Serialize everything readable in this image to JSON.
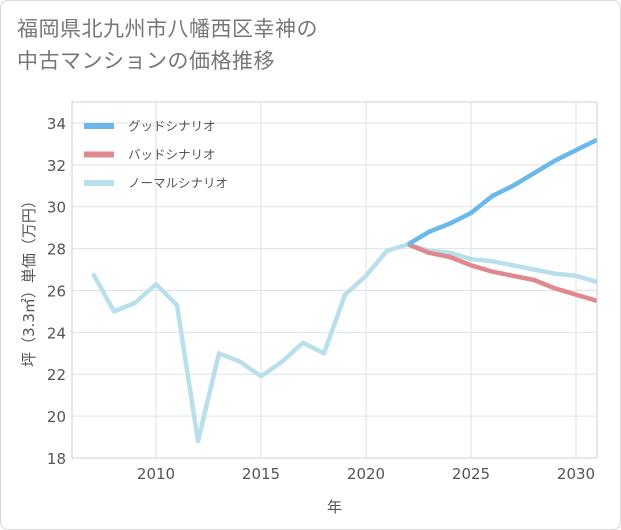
{
  "title_lines": [
    "福岡県北九州市八幡西区幸神の",
    "中古マンションの価格推移"
  ],
  "chart_data": {
    "type": "line",
    "title": "福岡県北九州市八幡西区幸神の中古マンションの価格推移",
    "xlabel": "年",
    "ylabel": "坪（3.3㎡）単価（万円）",
    "xlim": [
      2006,
      2031
    ],
    "ylim": [
      18,
      35
    ],
    "xticks": [
      2010,
      2015,
      2020,
      2025,
      2030
    ],
    "yticks": [
      18,
      20,
      22,
      24,
      26,
      28,
      30,
      32,
      34
    ],
    "grid": true,
    "legend_position": "top-left",
    "series": [
      {
        "name": "グッドシナリオ",
        "color": "#6bb8ec",
        "x": [
          2022,
          2023,
          2024,
          2025,
          2026,
          2027,
          2028,
          2029,
          2030,
          2031
        ],
        "values": [
          28.2,
          28.8,
          29.2,
          29.7,
          30.5,
          31.0,
          31.6,
          32.2,
          32.7,
          33.2
        ]
      },
      {
        "name": "バッドシナリオ",
        "color": "#e0888f",
        "x": [
          2022,
          2023,
          2024,
          2025,
          2026,
          2027,
          2028,
          2029,
          2030,
          2031
        ],
        "values": [
          28.2,
          27.8,
          27.6,
          27.2,
          26.9,
          26.7,
          26.5,
          26.1,
          25.8,
          25.5
        ]
      },
      {
        "name": "ノーマルシナリオ",
        "color": "#b9dfec",
        "x": [
          2007,
          2008,
          2009,
          2010,
          2011,
          2012,
          2013,
          2014,
          2015,
          2016,
          2017,
          2018,
          2019,
          2020,
          2021,
          2022,
          2023,
          2024,
          2025,
          2026,
          2027,
          2028,
          2029,
          2030,
          2031
        ],
        "values": [
          26.8,
          25.0,
          25.4,
          26.3,
          25.3,
          18.8,
          23.0,
          22.6,
          21.9,
          22.6,
          23.5,
          23.0,
          25.8,
          26.7,
          27.9,
          28.2,
          27.9,
          27.8,
          27.5,
          27.4,
          27.2,
          27.0,
          26.8,
          26.7,
          26.4
        ]
      }
    ]
  }
}
